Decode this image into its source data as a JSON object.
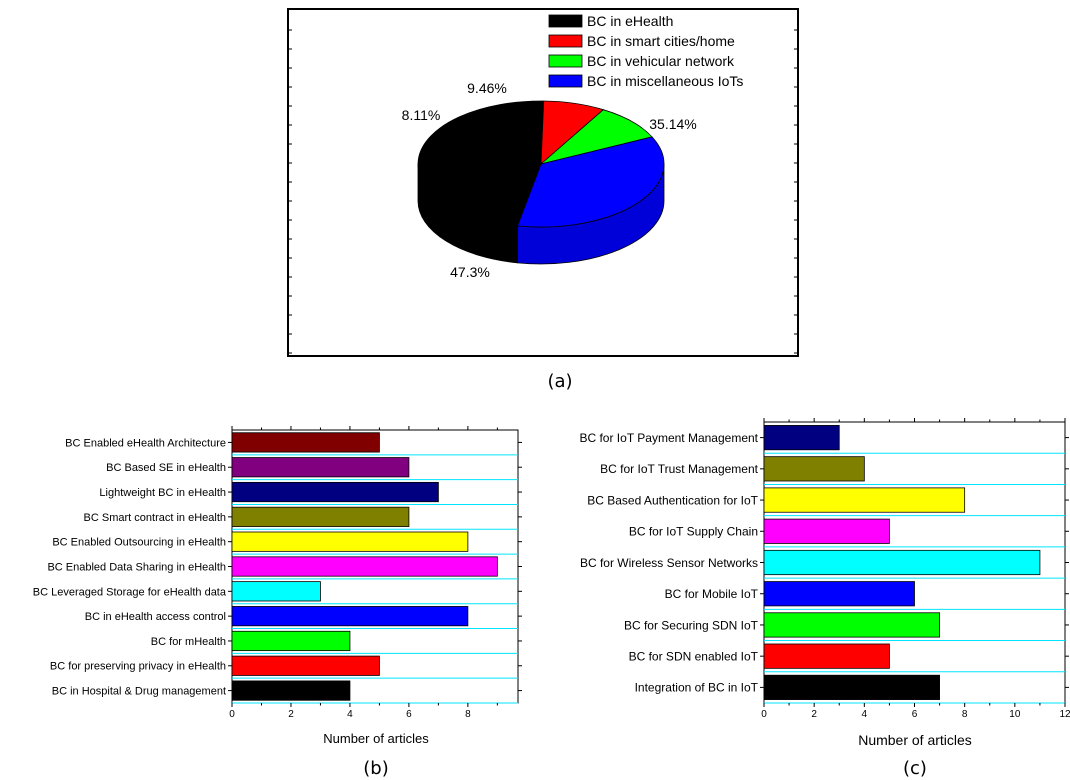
{
  "chart_data": [
    {
      "type": "pie",
      "caption": "(a)",
      "legend_position": "top-right",
      "slices": [
        {
          "name": "BC in eHealth",
          "value": 47.3,
          "label": "47.3%",
          "color": "#000000"
        },
        {
          "name": "BC in smart cities/home",
          "value": 8.11,
          "label": "8.11%",
          "color": "#ff0000"
        },
        {
          "name": "BC in vehicular network",
          "value": 9.46,
          "label": "9.46%",
          "color": "#00ff00"
        },
        {
          "name": "BC in miscellaneous IoTs",
          "value": 35.14,
          "label": "35.14%",
          "color": "#0000ff"
        }
      ]
    },
    {
      "type": "bar",
      "orientation": "horizontal",
      "caption": "(b)",
      "xlabel": "Number of articles",
      "xlim": [
        0,
        9.7
      ],
      "xticks": [
        0,
        2,
        4,
        6,
        8
      ],
      "bars": [
        {
          "label": "BC Enabled eHealth Architecture",
          "value": 5,
          "color": "#800000"
        },
        {
          "label": "BC Based SE in eHealth",
          "value": 6,
          "color": "#800080"
        },
        {
          "label": "Lightweight BC in eHealth",
          "value": 7,
          "color": "#000080"
        },
        {
          "label": "BC Smart contract in eHealth",
          "value": 6,
          "color": "#808000"
        },
        {
          "label": "BC Enabled Outsourcing in eHealth",
          "value": 8,
          "color": "#ffff00"
        },
        {
          "label": "BC Enabled Data Sharing in eHealth",
          "value": 9,
          "color": "#ff00ff"
        },
        {
          "label": "BC Leveraged Storage for eHealth data",
          "value": 3,
          "color": "#00ffff"
        },
        {
          "label": "BC in eHealth access control",
          "value": 8,
          "color": "#0000ff"
        },
        {
          "label": "BC for mHealth",
          "value": 4,
          "color": "#00ff00"
        },
        {
          "label": "BC for preserving privacy in eHealth",
          "value": 5,
          "color": "#ff0000"
        },
        {
          "label": "BC in Hospital & Drug management",
          "value": 4,
          "color": "#000000"
        }
      ]
    },
    {
      "type": "bar",
      "orientation": "horizontal",
      "caption": "(c)",
      "xlabel": "Number of articles",
      "xlim": [
        0,
        12
      ],
      "xticks": [
        0,
        2,
        4,
        6,
        8,
        10,
        12
      ],
      "bars": [
        {
          "label": "BC for IoT Payment Management",
          "value": 3,
          "color": "#000080"
        },
        {
          "label": "BC for IoT Trust Management",
          "value": 4,
          "color": "#808000"
        },
        {
          "label": "BC Based Authentication for IoT",
          "value": 8,
          "color": "#ffff00"
        },
        {
          "label": "BC for IoT Supply Chain",
          "value": 5,
          "color": "#ff00ff"
        },
        {
          "label": "BC for Wireless Sensor Networks",
          "value": 11,
          "color": "#00ffff"
        },
        {
          "label": "BC for Mobile IoT",
          "value": 6,
          "color": "#0000ff"
        },
        {
          "label": "BC for Securing SDN IoT",
          "value": 7,
          "color": "#00ff00"
        },
        {
          "label": "BC for SDN enabled IoT",
          "value": 5,
          "color": "#ff0000"
        },
        {
          "label": "Integration of BC in IoT",
          "value": 7,
          "color": "#000000"
        }
      ]
    }
  ]
}
